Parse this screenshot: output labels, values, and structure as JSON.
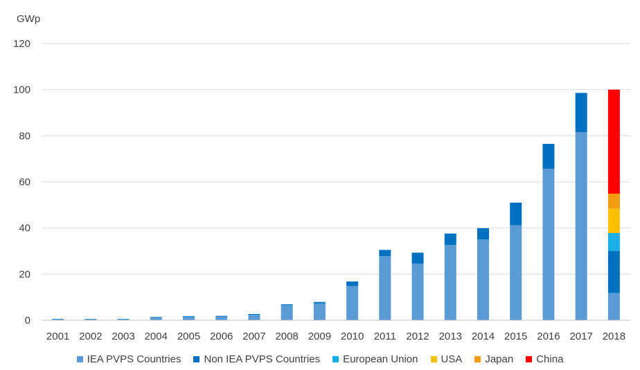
{
  "chart_data": {
    "type": "bar",
    "stacked": true,
    "ylabel": "GWp",
    "ylim": [
      0,
      120
    ],
    "yticks": [
      0,
      20,
      40,
      60,
      80,
      100,
      120
    ],
    "grid": true,
    "legend_position": "bottom",
    "categories": [
      "2001",
      "2002",
      "2003",
      "2004",
      "2005",
      "2006",
      "2007",
      "2008",
      "2009",
      "2010",
      "2011",
      "2012",
      "2013",
      "2014",
      "2015",
      "2016",
      "2017",
      "2018"
    ],
    "series": [
      {
        "name": "IEA PVPS Countries",
        "color": "#5B9BD5",
        "values": [
          0.5,
          0.5,
          0.5,
          1.2,
          1.6,
          1.6,
          2.4,
          6.5,
          7.3,
          14.8,
          27.8,
          24.5,
          32.6,
          35.0,
          41.2,
          65.7,
          81.6,
          11.8
        ]
      },
      {
        "name": "Non IEA PVPS Countries",
        "color": "#0070C0",
        "values": [
          0.1,
          0.1,
          0.1,
          0.2,
          0.2,
          0.3,
          0.3,
          0.4,
          0.6,
          2.0,
          2.7,
          4.8,
          5.0,
          4.9,
          9.8,
          10.8,
          17.0,
          18.2
        ]
      },
      {
        "name": "European Union",
        "color": "#1AAFE6",
        "values": [
          0,
          0,
          0,
          0,
          0,
          0,
          0,
          0,
          0,
          0,
          0,
          0,
          0,
          0,
          0,
          0,
          0,
          7.8
        ]
      },
      {
        "name": "USA",
        "color": "#FFC000",
        "values": [
          0,
          0,
          0,
          0,
          0,
          0,
          0,
          0,
          0,
          0,
          0,
          0,
          0,
          0,
          0,
          0,
          0,
          10.6
        ]
      },
      {
        "name": "Japan",
        "color": "#F39C12",
        "values": [
          0,
          0,
          0,
          0,
          0,
          0,
          0,
          0,
          0,
          0,
          0,
          0,
          0,
          0,
          0,
          0,
          0,
          6.5
        ]
      },
      {
        "name": "China",
        "color": "#FF0000",
        "values": [
          0,
          0,
          0,
          0,
          0,
          0,
          0,
          0,
          0,
          0,
          0,
          0,
          0,
          0,
          0,
          0,
          0,
          45.1
        ]
      }
    ]
  }
}
